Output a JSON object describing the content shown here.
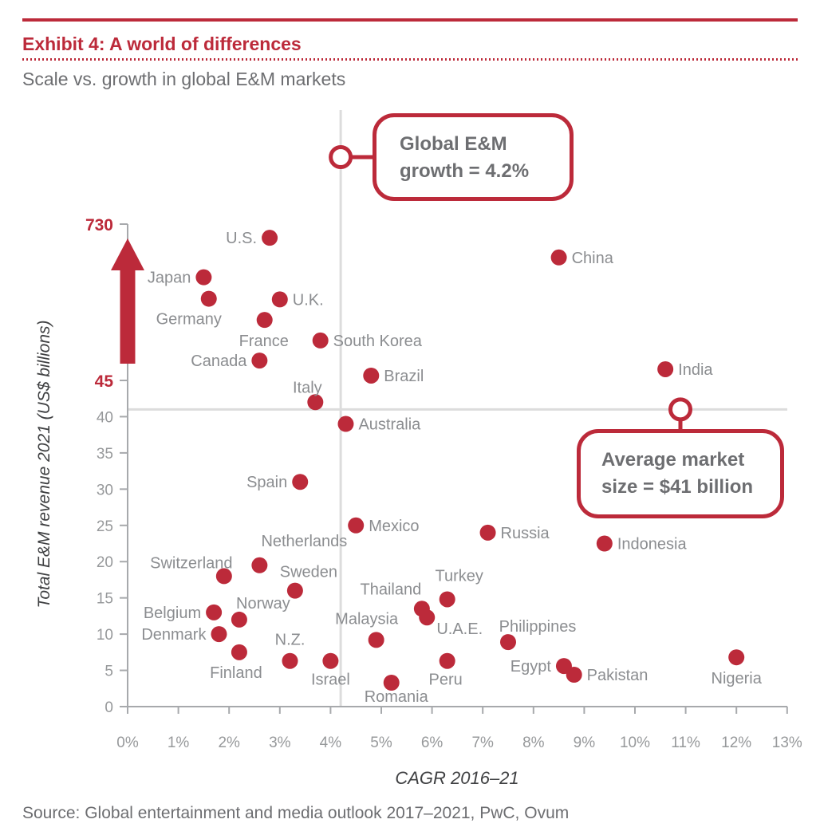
{
  "header": {
    "exhibit_title": "Exhibit 4: A world of differences",
    "subtitle": "Scale vs. growth in global E&M markets"
  },
  "callouts": {
    "growth": {
      "line1": "Global E&M",
      "line2": "growth = 4.2%",
      "value_pct": 4.2
    },
    "avg_size": {
      "line1": "Average market",
      "line2": "size = $41 billion",
      "value_bn": 41
    }
  },
  "source": "Source: Global entertainment and media outlook 2017–2021, PwC, Ovum",
  "colors": {
    "red": "#bc2a3a",
    "label_gray": "#8b8d90",
    "tick_gray": "#97999b",
    "dark_gray": "#6d6e71",
    "axis_title_gray": "#3f4042",
    "axis_line_gray": "#a7a9ac",
    "reference_line_gray": "#dcdcdc"
  },
  "chart_data": {
    "type": "scatter",
    "title": "Scale vs. growth in global E&M markets",
    "xlabel": "CAGR 2016–21",
    "ylabel": "Total E&M revenue 2021 (US$ billions)",
    "x_range_pct": [
      0,
      13
    ],
    "x_ticks": [
      "0%",
      "1%",
      "2%",
      "3%",
      "4%",
      "5%",
      "6%",
      "7%",
      "8%",
      "9%",
      "10%",
      "11%",
      "12%",
      "13%"
    ],
    "y_ticks_regular": [
      0,
      5,
      10,
      15,
      20,
      25,
      30,
      35,
      40
    ],
    "y_ticks_highlight": [
      45,
      730
    ],
    "y_axis_break": {
      "linear_max": 45,
      "top_value": 730,
      "note": "y-axis is broken above 45 (red arrow); revenue values above 45 are approximate positions on the compressed 45–730 band"
    },
    "reference_lines": {
      "global_growth_pct": 4.2,
      "average_market_size_bn": 41
    },
    "grid": "off",
    "points": [
      {
        "label": "U.S.",
        "cagr_pct": 2.8,
        "revenue_bn": 670,
        "lp": [
          "e",
          -16,
          7
        ]
      },
      {
        "label": "Japan",
        "cagr_pct": 1.5,
        "revenue_bn": 497,
        "lp": [
          "e",
          -16,
          7
        ]
      },
      {
        "label": "Germany",
        "cagr_pct": 1.6,
        "revenue_bn": 403,
        "lp": [
          "m",
          -25,
          32
        ]
      },
      {
        "label": "U.K.",
        "cagr_pct": 3.0,
        "revenue_bn": 400,
        "lp": [
          "s",
          16,
          7
        ]
      },
      {
        "label": "France",
        "cagr_pct": 2.7,
        "revenue_bn": 310,
        "lp": [
          "m",
          -1,
          33
        ]
      },
      {
        "label": "South Korea",
        "cagr_pct": 3.8,
        "revenue_bn": 220,
        "lp": [
          "s",
          16,
          7
        ]
      },
      {
        "label": "Canada",
        "cagr_pct": 2.6,
        "revenue_bn": 132,
        "lp": [
          "e",
          -16,
          7
        ]
      },
      {
        "label": "China",
        "cagr_pct": 8.5,
        "revenue_bn": 584,
        "lp": [
          "s",
          16,
          7
        ]
      },
      {
        "label": "India",
        "cagr_pct": 10.6,
        "revenue_bn": 94,
        "lp": [
          "s",
          16,
          7
        ]
      },
      {
        "label": "Brazil",
        "cagr_pct": 4.8,
        "revenue_bn": 66,
        "lp": [
          "s",
          16,
          7
        ]
      },
      {
        "label": "Italy",
        "cagr_pct": 3.7,
        "revenue_bn": 42,
        "lp": [
          "m",
          -10,
          -12
        ]
      },
      {
        "label": "Australia",
        "cagr_pct": 4.3,
        "revenue_bn": 39,
        "lp": [
          "s",
          16,
          7
        ]
      },
      {
        "label": "Spain",
        "cagr_pct": 3.4,
        "revenue_bn": 31,
        "lp": [
          "e",
          -16,
          7
        ]
      },
      {
        "label": "Mexico",
        "cagr_pct": 4.5,
        "revenue_bn": 25,
        "lp": [
          "s",
          16,
          7
        ]
      },
      {
        "label": "Russia",
        "cagr_pct": 7.1,
        "revenue_bn": 24,
        "lp": [
          "s",
          16,
          7
        ]
      },
      {
        "label": "Indonesia",
        "cagr_pct": 9.4,
        "revenue_bn": 22.5,
        "lp": [
          "s",
          16,
          7
        ]
      },
      {
        "label": "Netherlands",
        "cagr_pct": 2.6,
        "revenue_bn": 19.5,
        "lp": [
          "m",
          56,
          -24
        ]
      },
      {
        "label": "Switzerland",
        "cagr_pct": 1.9,
        "revenue_bn": 18,
        "lp": [
          "m",
          -41,
          -10
        ]
      },
      {
        "label": "Sweden",
        "cagr_pct": 3.3,
        "revenue_bn": 16,
        "lp": [
          "m",
          17,
          -17
        ]
      },
      {
        "label": "Turkey",
        "cagr_pct": 6.3,
        "revenue_bn": 14.8,
        "lp": [
          "m",
          15,
          -23
        ]
      },
      {
        "label": "Thailand",
        "cagr_pct": 5.8,
        "revenue_bn": 13.5,
        "lp": [
          "m",
          -39,
          -18
        ]
      },
      {
        "label": "Belgium",
        "cagr_pct": 1.7,
        "revenue_bn": 13,
        "lp": [
          "e",
          -16,
          7
        ]
      },
      {
        "label": "U.A.E.",
        "cagr_pct": 5.9,
        "revenue_bn": 12.3,
        "lp": [
          "m",
          41,
          21
        ]
      },
      {
        "label": "Norway",
        "cagr_pct": 2.2,
        "revenue_bn": 12,
        "lp": [
          "m",
          30,
          -14
        ]
      },
      {
        "label": "Denmark",
        "cagr_pct": 1.8,
        "revenue_bn": 10,
        "lp": [
          "e",
          -16,
          7
        ]
      },
      {
        "label": "Malaysia",
        "cagr_pct": 4.9,
        "revenue_bn": 9.2,
        "lp": [
          "m",
          -12,
          -20
        ]
      },
      {
        "label": "Philippines",
        "cagr_pct": 7.5,
        "revenue_bn": 8.9,
        "lp": [
          "m",
          37,
          -13
        ]
      },
      {
        "label": "Finland",
        "cagr_pct": 2.2,
        "revenue_bn": 7.5,
        "lp": [
          "m",
          -4,
          32
        ]
      },
      {
        "label": "Nigeria",
        "cagr_pct": 12.0,
        "revenue_bn": 6.8,
        "lp": [
          "m",
          0,
          33
        ]
      },
      {
        "label": "N.Z.",
        "cagr_pct": 3.2,
        "revenue_bn": 6.3,
        "lp": [
          "m",
          0,
          -20
        ]
      },
      {
        "label": "Israel",
        "cagr_pct": 4.0,
        "revenue_bn": 6.3,
        "lp": [
          "m",
          0,
          30
        ]
      },
      {
        "label": "Peru",
        "cagr_pct": 6.3,
        "revenue_bn": 6.3,
        "lp": [
          "m",
          -2,
          30
        ]
      },
      {
        "label": "Egypt",
        "cagr_pct": 8.6,
        "revenue_bn": 5.6,
        "lp": [
          "e",
          -16,
          7
        ]
      },
      {
        "label": "Pakistan",
        "cagr_pct": 8.8,
        "revenue_bn": 4.4,
        "lp": [
          "s",
          16,
          7
        ]
      },
      {
        "label": "Romania",
        "cagr_pct": 5.2,
        "revenue_bn": 3.3,
        "lp": [
          "m",
          6,
          24
        ]
      }
    ]
  }
}
